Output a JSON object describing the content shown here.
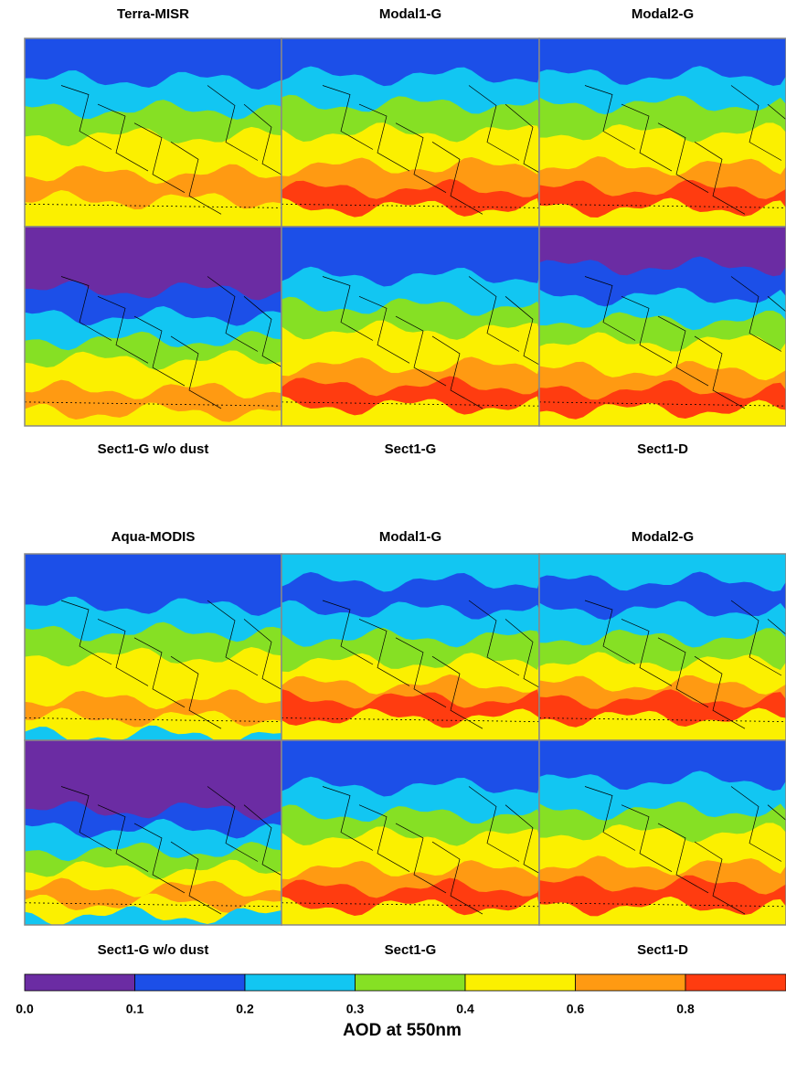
{
  "groups": [
    {
      "titles": [
        "Terra-MISR",
        "Modal1-G",
        "Modal2-G"
      ],
      "labels": [
        "Sect1-G w/o dust",
        "Sect1-G",
        "Sect1-D"
      ]
    },
    {
      "titles": [
        "Aqua-MODIS",
        "Modal1-G",
        "Modal2-G"
      ],
      "labels": [
        "Sect1-G w/o dust",
        "Sect1-G",
        "Sect1-D"
      ]
    }
  ],
  "colorbar": {
    "colors": [
      "#6b2ca3",
      "#1c4fe8",
      "#12c6f2",
      "#86e024",
      "#fbf000",
      "#ff9a12",
      "#ff3c10"
    ],
    "ticks": [
      "0.0",
      "0.1",
      "0.2",
      "0.3",
      "0.4",
      "0.6",
      "0.8"
    ],
    "label": "AOD at 550nm"
  }
}
